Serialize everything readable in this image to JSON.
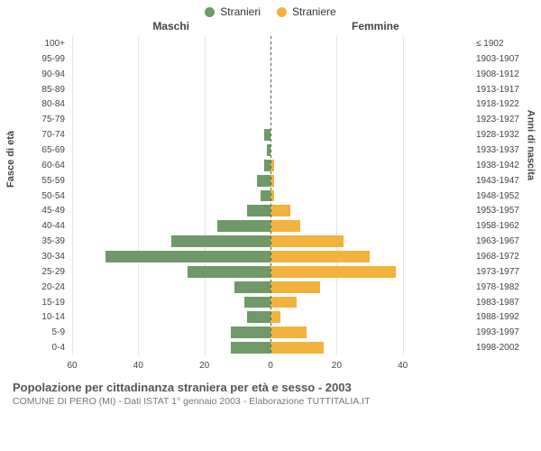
{
  "legend": {
    "male": {
      "label": "Stranieri",
      "color": "#6f9968"
    },
    "female": {
      "label": "Straniere",
      "color": "#f2b33c"
    }
  },
  "headers": {
    "male": "Maschi",
    "female": "Femmine"
  },
  "axes": {
    "left_title": "Fasce di età",
    "right_title": "Anni di nascita",
    "x_max": 60,
    "x_ticks_left": [
      60,
      40,
      20,
      0
    ],
    "x_ticks_right": [
      0,
      20,
      40
    ],
    "x_ticks": [
      -60,
      -40,
      -20,
      0,
      20,
      40
    ],
    "grid_color": "#e6e6e6",
    "label_fontsize": 10
  },
  "pyramid": {
    "type": "population-pyramid",
    "male_color": "#6f9968",
    "female_color": "#f2b33c",
    "background": "#ffffff",
    "rows": [
      {
        "age": "100+",
        "birth": "≤ 1902",
        "m": 0,
        "f": 0
      },
      {
        "age": "95-99",
        "birth": "1903-1907",
        "m": 0,
        "f": 0
      },
      {
        "age": "90-94",
        "birth": "1908-1912",
        "m": 0,
        "f": 0
      },
      {
        "age": "85-89",
        "birth": "1913-1917",
        "m": 0,
        "f": 0
      },
      {
        "age": "80-84",
        "birth": "1918-1922",
        "m": 0,
        "f": 0
      },
      {
        "age": "75-79",
        "birth": "1923-1927",
        "m": 0,
        "f": 0
      },
      {
        "age": "70-74",
        "birth": "1928-1932",
        "m": 2,
        "f": 0
      },
      {
        "age": "65-69",
        "birth": "1933-1937",
        "m": 1,
        "f": 0
      },
      {
        "age": "60-64",
        "birth": "1938-1942",
        "m": 2,
        "f": 1
      },
      {
        "age": "55-59",
        "birth": "1943-1947",
        "m": 4,
        "f": 1
      },
      {
        "age": "50-54",
        "birth": "1948-1952",
        "m": 3,
        "f": 1
      },
      {
        "age": "45-49",
        "birth": "1953-1957",
        "m": 7,
        "f": 6
      },
      {
        "age": "40-44",
        "birth": "1958-1962",
        "m": 16,
        "f": 9
      },
      {
        "age": "35-39",
        "birth": "1963-1967",
        "m": 30,
        "f": 22
      },
      {
        "age": "30-34",
        "birth": "1968-1972",
        "m": 50,
        "f": 30
      },
      {
        "age": "25-29",
        "birth": "1973-1977",
        "m": 25,
        "f": 38
      },
      {
        "age": "20-24",
        "birth": "1978-1982",
        "m": 11,
        "f": 15
      },
      {
        "age": "15-19",
        "birth": "1983-1987",
        "m": 8,
        "f": 8
      },
      {
        "age": "10-14",
        "birth": "1988-1992",
        "m": 7,
        "f": 3
      },
      {
        "age": "5-9",
        "birth": "1993-1997",
        "m": 12,
        "f": 11
      },
      {
        "age": "0-4",
        "birth": "1998-2002",
        "m": 12,
        "f": 16
      }
    ]
  },
  "footer": {
    "title": "Popolazione per cittadinanza straniera per età e sesso - 2003",
    "subtitle": "COMUNE DI PERO (MI) - Dati ISTAT 1° gennaio 2003 - Elaborazione TUTTITALIA.IT"
  }
}
